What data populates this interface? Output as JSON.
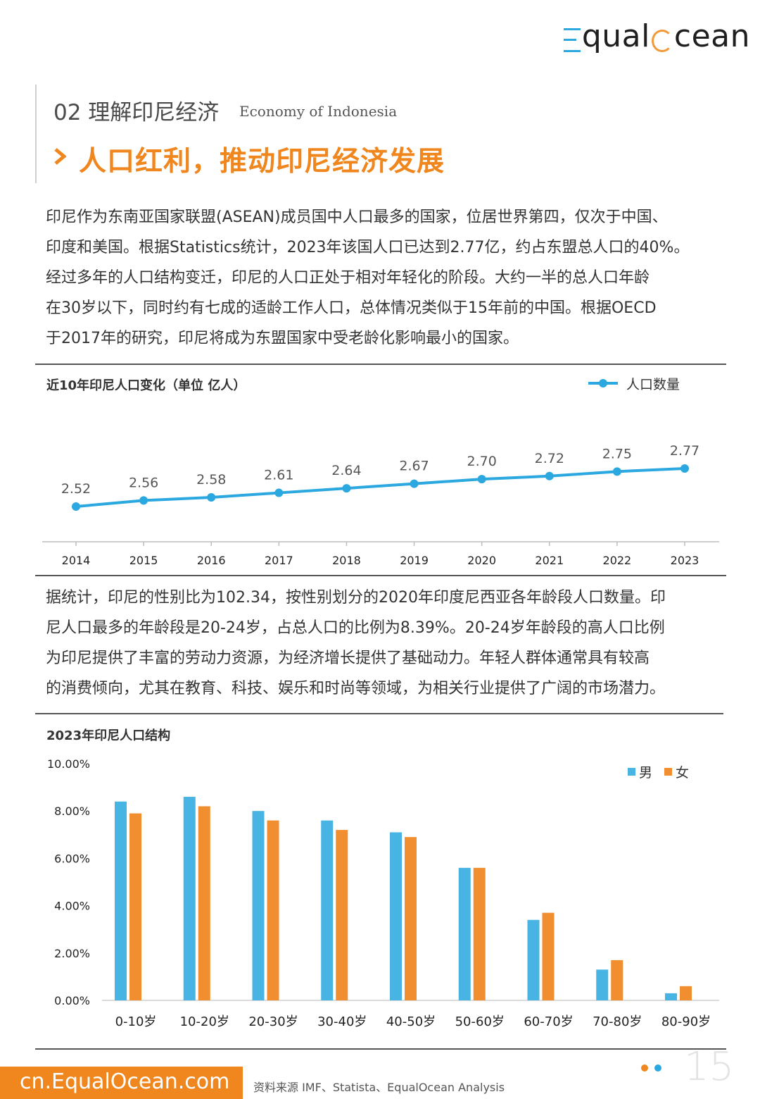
{
  "header": {
    "logo_text": "EqualOcean"
  },
  "section": {
    "number_cn": "02 理解印尼经济",
    "english": "Economy of Indonesia",
    "title": "人口红利，推动印尼经济发展"
  },
  "paragraph1": {
    "lines": [
      "印尼作为东南亚国家联盟(ASEAN)成员国中人口最多的国家，位居世界第四，仅次于中国、",
      "印度和美国。根据Statistics统计，2023年该国人口已达到2.77亿，约占东盟总人口的40%。",
      "经过多年的人口结构变迁，印尼的人口正处于相对年轻化的阶段。大约一半的总人口年龄",
      "在30岁以下，同时约有七成的适龄工作人口，总体情况类似于15年前的中国。根据OECD",
      "于2017年的研究，印尼将成为东盟国家中受老龄化影响最小的国家。"
    ]
  },
  "paragraph2": {
    "lines": [
      "据统计，印尼的性别比为102.34，按性别划分的2020年印度尼西亚各年龄段人口数量。印",
      "尼人口最多的年龄段是20-24岁，占总人口的比例为8.39%。20-24岁年龄段的高人口比例",
      "为印尼提供了丰富的劳动力资源，为经济增长提供了基础动力。年轻人群体通常具有较高",
      "的消费倾向，尤其在教育、科技、娱乐和时尚等领域，为相关行业提供了广阔的市场潜力。"
    ]
  },
  "chart_data": [
    {
      "type": "line",
      "title": "近10年印尼人口变化（单位  亿人）",
      "legend": "人口数量",
      "legend_position": "top-right",
      "color": "#2aa8df",
      "x": [
        "2014",
        "2015",
        "2016",
        "2017",
        "2018",
        "2019",
        "2020",
        "2021",
        "2022",
        "2023"
      ],
      "values": [
        2.52,
        2.56,
        2.58,
        2.61,
        2.64,
        2.67,
        2.7,
        2.72,
        2.75,
        2.77
      ],
      "labels": [
        "2.52",
        "2.56",
        "2.58",
        "2.61",
        "2.64",
        "2.67",
        "2.70",
        "2.72",
        "2.75",
        "2.77"
      ],
      "ylim": [
        2.0,
        2.9
      ]
    },
    {
      "type": "bar",
      "title": "2023年印尼人口结构",
      "legend_position": "top-right",
      "categories": [
        "0-10岁",
        "10-20岁",
        "20-30岁",
        "30-40岁",
        "40-50岁",
        "50-60岁",
        "60-70岁",
        "70-80岁",
        "80-90岁"
      ],
      "series": [
        {
          "name": "男",
          "color": "#47b4e4",
          "values": [
            8.4,
            8.6,
            8.0,
            7.6,
            7.1,
            5.6,
            3.4,
            1.3,
            0.3
          ]
        },
        {
          "name": "女",
          "color": "#f18e2f",
          "values": [
            7.9,
            8.2,
            7.6,
            7.2,
            6.9,
            5.6,
            3.7,
            1.7,
            0.6
          ]
        }
      ],
      "yticks": [
        "10.00%",
        "8.00%",
        "6.00%",
        "4.00%",
        "2.00%",
        "0.00%"
      ],
      "ylim": [
        0,
        10
      ]
    }
  ],
  "footer": {
    "url": "cn.EqualOcean.com",
    "source": "资料来源 IMF、Statista、EqualOcean Analysis",
    "page_number": "15",
    "dot_colors": [
      "#f0861e",
      "#2aa8df"
    ]
  }
}
